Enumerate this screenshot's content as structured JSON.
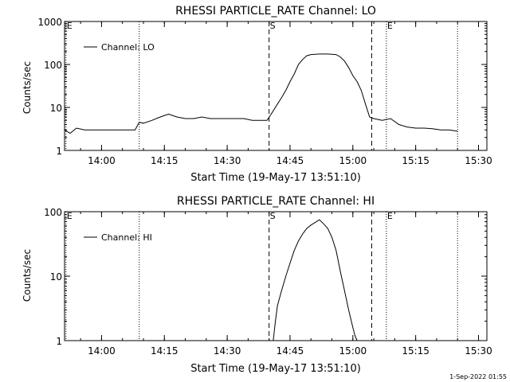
{
  "footer_timestamp": "1-Sep-2022 01:55",
  "chart_data": [
    {
      "type": "line",
      "title": "RHESSI PARTICLE_RATE Channel: LO",
      "xlabel": "Start Time (19-May-17 13:51:10)",
      "ylabel": "Counts/sec",
      "y_scale": "log",
      "ylim": [
        1,
        1000
      ],
      "xlim": [
        "13:51:10",
        "15:32:00"
      ],
      "x_ticks": [
        "14:00",
        "14:15",
        "14:30",
        "14:45",
        "15:00",
        "15:15",
        "15:30"
      ],
      "y_ticks": [
        "1",
        "10",
        "100",
        "1000"
      ],
      "legend": {
        "position": "top-left",
        "label": "Channel: LO"
      },
      "markers": [
        {
          "label": "E",
          "time": "13:51:30",
          "style": "dotted"
        },
        {
          "label": "",
          "time": "14:09:00",
          "style": "dotted"
        },
        {
          "label": "S",
          "time": "14:40:00",
          "style": "dashed"
        },
        {
          "label": "",
          "time": "15:04:30",
          "style": "dashed"
        },
        {
          "label": "E",
          "time": "15:08:00",
          "style": "dotted"
        },
        {
          "label": "",
          "time": "15:25:00",
          "style": "dotted"
        }
      ],
      "series": [
        {
          "name": "Channel: LO",
          "x": [
            "13:51:10",
            "13:52:30",
            "13:54:00",
            "13:56:00",
            "13:58:00",
            "14:00:00",
            "14:02:00",
            "14:04:00",
            "14:06:00",
            "14:08:00",
            "14:09:00",
            "14:10:00",
            "14:12:00",
            "14:14:00",
            "14:16:00",
            "14:18:00",
            "14:20:00",
            "14:22:00",
            "14:24:00",
            "14:26:00",
            "14:28:00",
            "14:30:00",
            "14:32:00",
            "14:34:00",
            "14:36:00",
            "14:38:00",
            "14:39:30",
            "14:40:30",
            "14:42:00",
            "14:43:00",
            "14:44:00",
            "14:45:00",
            "14:46:00",
            "14:47:00",
            "14:48:00",
            "14:49:00",
            "14:50:00",
            "14:52:00",
            "14:54:00",
            "14:56:00",
            "14:57:00",
            "14:58:00",
            "14:59:00",
            "15:00:00",
            "15:01:00",
            "15:02:00",
            "15:03:00",
            "15:04:00",
            "15:05:00",
            "15:07:00",
            "15:09:00",
            "15:11:00",
            "15:13:00",
            "15:15:00",
            "15:17:00",
            "15:19:00",
            "15:21:00",
            "15:23:00",
            "15:25:00"
          ],
          "y": [
            3,
            2.5,
            3.3,
            3,
            3,
            3,
            3,
            3,
            3,
            3,
            4.5,
            4.3,
            5,
            6,
            7,
            6,
            5.5,
            5.5,
            6,
            5.5,
            5.5,
            5.5,
            5.5,
            5.5,
            5,
            5,
            5,
            7,
            12,
            17,
            25,
            40,
            60,
            100,
            130,
            160,
            170,
            175,
            175,
            170,
            150,
            120,
            85,
            55,
            40,
            25,
            12,
            6,
            5.5,
            5,
            5.5,
            4,
            3.5,
            3.3,
            3.3,
            3.2,
            3,
            3,
            2.8
          ]
        }
      ]
    },
    {
      "type": "line",
      "title": "RHESSI PARTICLE_RATE Channel: HI",
      "xlabel": "Start Time (19-May-17 13:51:10)",
      "ylabel": "Counts/sec",
      "y_scale": "log",
      "ylim": [
        1,
        100
      ],
      "xlim": [
        "13:51:10",
        "15:32:00"
      ],
      "x_ticks": [
        "14:00",
        "14:15",
        "14:30",
        "14:45",
        "15:00",
        "15:15",
        "15:30"
      ],
      "y_ticks": [
        "1",
        "10",
        "100"
      ],
      "legend": {
        "position": "top-left",
        "label": "Channel: HI"
      },
      "markers": [
        {
          "label": "E",
          "time": "13:51:30",
          "style": "dotted"
        },
        {
          "label": "",
          "time": "14:09:00",
          "style": "dotted"
        },
        {
          "label": "S",
          "time": "14:40:00",
          "style": "dashed"
        },
        {
          "label": "",
          "time": "15:04:30",
          "style": "dashed"
        },
        {
          "label": "E",
          "time": "15:08:00",
          "style": "dotted"
        },
        {
          "label": "",
          "time": "15:25:00",
          "style": "dotted"
        }
      ],
      "series": [
        {
          "name": "Channel: HI",
          "x": [
            "14:41:00",
            "14:41:30",
            "14:42:00",
            "14:43:00",
            "14:44:00",
            "14:45:00",
            "14:46:00",
            "14:47:00",
            "14:48:00",
            "14:49:00",
            "14:50:00",
            "14:51:00",
            "14:52:00",
            "14:53:00",
            "14:54:00",
            "14:55:00",
            "14:56:00",
            "14:57:00",
            "14:58:00",
            "14:59:00",
            "15:00:00",
            "15:00:30",
            "15:01:00"
          ],
          "y": [
            1,
            2,
            3.5,
            6,
            10,
            16,
            25,
            35,
            45,
            55,
            62,
            68,
            75,
            65,
            55,
            40,
            25,
            12,
            6,
            3,
            1.6,
            1.2,
            1
          ]
        }
      ]
    }
  ]
}
